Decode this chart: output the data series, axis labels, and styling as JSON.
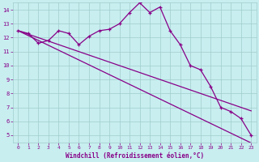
{
  "x": [
    0,
    1,
    2,
    3,
    4,
    5,
    6,
    7,
    8,
    9,
    10,
    11,
    12,
    13,
    14,
    15,
    16,
    17,
    18,
    19,
    20,
    21,
    22,
    23
  ],
  "y_curve": [
    12.5,
    12.3,
    11.6,
    11.8,
    12.5,
    12.3,
    11.5,
    12.1,
    12.5,
    12.6,
    13.0,
    13.8,
    14.5,
    13.8,
    14.2,
    12.5,
    11.5,
    10.0,
    9.7,
    8.5,
    7.0,
    6.7,
    6.2,
    5.0
  ],
  "y_line1": [
    12.5,
    12.15,
    11.8,
    11.45,
    11.1,
    10.75,
    10.4,
    10.05,
    9.7,
    9.35,
    9.0,
    8.65,
    8.3,
    7.95,
    7.6,
    7.25,
    6.9,
    6.55,
    6.2,
    5.85,
    5.5,
    5.15,
    4.8,
    4.45
  ],
  "y_line2": [
    12.5,
    12.25,
    12.0,
    11.75,
    11.5,
    11.25,
    11.0,
    10.75,
    10.5,
    10.25,
    10.0,
    9.75,
    9.5,
    9.25,
    9.0,
    8.75,
    8.5,
    8.25,
    8.0,
    7.75,
    7.5,
    7.25,
    7.0,
    6.75
  ],
  "line_color": "#880088",
  "bg_color": "#c8eef0",
  "grid_color": "#a0cccc",
  "xlabel": "Windchill (Refroidissement éolien,°C)",
  "xlim": [
    -0.5,
    23.5
  ],
  "ylim": [
    4.5,
    14.5
  ],
  "yticks": [
    5,
    6,
    7,
    8,
    9,
    10,
    11,
    12,
    13,
    14
  ],
  "xticks": [
    0,
    1,
    2,
    3,
    4,
    5,
    6,
    7,
    8,
    9,
    10,
    11,
    12,
    13,
    14,
    15,
    16,
    17,
    18,
    19,
    20,
    21,
    22,
    23
  ]
}
